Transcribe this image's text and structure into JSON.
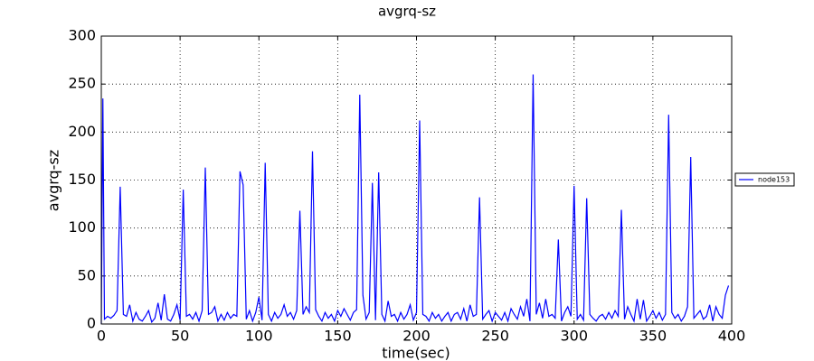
{
  "chart_data": {
    "type": "line",
    "title": "avgrq-sz",
    "x_label": "time(sec)",
    "y_label": "avgrq-sz",
    "x": [
      0,
      1,
      2,
      4,
      6,
      8,
      10,
      12,
      14,
      16,
      18,
      20,
      22,
      24,
      26,
      28,
      30,
      32,
      34,
      36,
      38,
      40,
      42,
      44,
      46,
      48,
      50,
      52,
      54,
      56,
      58,
      60,
      62,
      64,
      66,
      68,
      70,
      72,
      74,
      76,
      78,
      80,
      82,
      84,
      86,
      88,
      90,
      92,
      94,
      96,
      98,
      100,
      102,
      104,
      106,
      108,
      110,
      112,
      114,
      116,
      118,
      120,
      122,
      124,
      126,
      128,
      130,
      132,
      134,
      136,
      138,
      140,
      142,
      144,
      146,
      148,
      150,
      152,
      154,
      156,
      158,
      160,
      162,
      164,
      166,
      168,
      170,
      172,
      174,
      176,
      178,
      180,
      182,
      184,
      186,
      188,
      190,
      192,
      194,
      196,
      198,
      200,
      202,
      204,
      206,
      208,
      210,
      212,
      214,
      216,
      218,
      220,
      222,
      224,
      226,
      228,
      230,
      232,
      234,
      236,
      238,
      240,
      242,
      244,
      246,
      248,
      250,
      252,
      254,
      256,
      258,
      260,
      262,
      264,
      266,
      268,
      270,
      272,
      274,
      276,
      278,
      280,
      282,
      284,
      286,
      288,
      290,
      292,
      294,
      296,
      298,
      300,
      302,
      304,
      306,
      308,
      310,
      312,
      314,
      316,
      318,
      320,
      322,
      324,
      326,
      328,
      330,
      332,
      334,
      336,
      338,
      340,
      342,
      344,
      346,
      348,
      350,
      352,
      354,
      356,
      358,
      360,
      362,
      364,
      366,
      368,
      370,
      372,
      374,
      376,
      378,
      380,
      382,
      384,
      386,
      388,
      390,
      392,
      394,
      396,
      398
    ],
    "series": [
      {
        "name": "node153",
        "color": "#0000ff",
        "values": [
          0,
          235,
          5,
          8,
          6,
          9,
          14,
          143,
          10,
          8,
          20,
          3,
          12,
          5,
          3,
          8,
          14,
          2,
          6,
          22,
          4,
          31,
          5,
          3,
          10,
          20,
          4,
          140,
          8,
          10,
          5,
          12,
          3,
          14,
          163,
          10,
          12,
          18,
          3,
          10,
          4,
          12,
          6,
          10,
          8,
          159,
          145,
          5,
          14,
          3,
          12,
          28,
          4,
          168,
          10,
          3,
          12,
          6,
          10,
          20,
          8,
          12,
          5,
          14,
          118,
          10,
          18,
          12,
          180,
          15,
          8,
          3,
          12,
          6,
          10,
          3,
          14,
          8,
          16,
          10,
          4,
          12,
          15,
          239,
          30,
          5,
          12,
          147,
          4,
          158,
          10,
          3,
          24,
          8,
          10,
          3,
          12,
          5,
          10,
          20,
          4,
          12,
          212,
          10,
          8,
          3,
          12,
          6,
          10,
          3,
          8,
          12,
          3,
          10,
          12,
          5,
          16,
          3,
          20,
          8,
          10,
          132,
          5,
          10,
          14,
          3,
          12,
          8,
          4,
          12,
          3,
          16,
          10,
          5,
          18,
          8,
          26,
          3,
          260,
          10,
          22,
          6,
          26,
          8,
          10,
          6,
          88,
          3,
          12,
          18,
          8,
          144,
          5,
          10,
          4,
          131,
          10,
          6,
          3,
          8,
          10,
          5,
          12,
          6,
          14,
          8,
          119,
          5,
          18,
          10,
          3,
          26,
          5,
          25,
          3,
          8,
          14,
          6,
          12,
          4,
          10,
          218,
          12,
          6,
          10,
          3,
          8,
          18,
          174,
          6,
          10,
          14,
          5,
          8,
          20,
          3,
          18,
          10,
          6,
          30,
          40
        ]
      }
    ],
    "xlim": [
      0,
      400
    ],
    "ylim": [
      0,
      300
    ],
    "xticks": [
      0,
      50,
      100,
      150,
      200,
      250,
      300,
      350,
      400
    ],
    "yticks": [
      0,
      50,
      100,
      150,
      200,
      250,
      300
    ],
    "grid": true,
    "legend": "right"
  }
}
